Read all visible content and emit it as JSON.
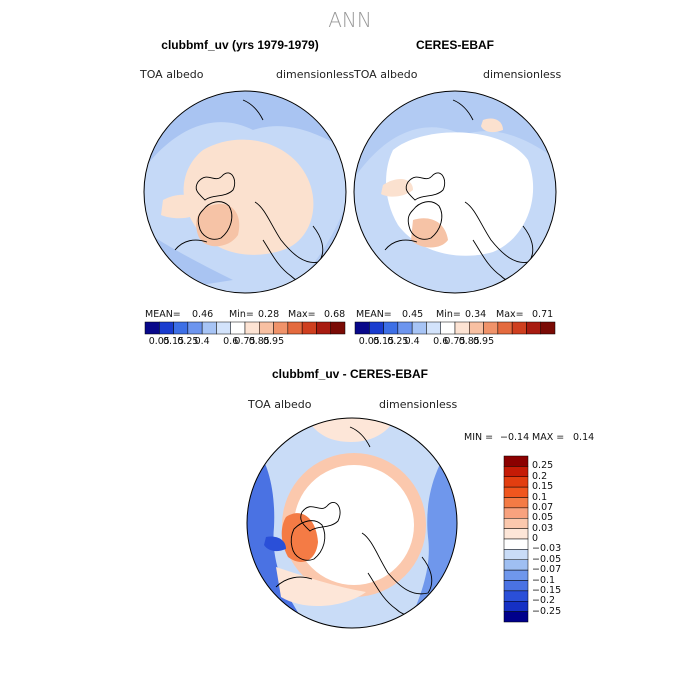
{
  "page": {
    "suptitle": "ANN"
  },
  "chart_data": [
    {
      "type": "heatmap",
      "projection": "north-polar-stereographic",
      "title": "clubbmf_uv (yrs 1979-1979)",
      "left_label": "TOA albedo",
      "right_label": "dimensionless",
      "stats": {
        "mean_label": "MEAN=",
        "mean": "0.46",
        "min_label": "Min=",
        "min": "0.28",
        "max_label": "Max=",
        "max": "0.68"
      },
      "colorbar_levels": [
        "0.05",
        "0.15",
        "0.25",
        "0.4",
        "0.6",
        "0.75",
        "0.85",
        "0.95"
      ],
      "colorbar_colors": [
        "#08088a",
        "#1a3ccf",
        "#3d6fe6",
        "#6d95ee",
        "#a7c4f5",
        "#d3e3fb",
        "#ffffff",
        "#fde3d3",
        "#f8c0a2",
        "#f0936a",
        "#e46a3e",
        "#cf3f1f",
        "#a81b10",
        "#7a0a05"
      ]
    },
    {
      "type": "heatmap",
      "projection": "north-polar-stereographic",
      "title": "CERES-EBAF",
      "left_label": "TOA albedo",
      "right_label": "dimensionless",
      "stats": {
        "mean_label": "MEAN=",
        "mean": "0.45",
        "min_label": "Min=",
        "min": "0.34",
        "max_label": "Max=",
        "max": "0.71"
      },
      "colorbar_levels": [
        "0.05",
        "0.15",
        "0.25",
        "0.4",
        "0.6",
        "0.75",
        "0.85",
        "0.95"
      ],
      "colorbar_colors": [
        "#08088a",
        "#1a3ccf",
        "#3d6fe6",
        "#6d95ee",
        "#a7c4f5",
        "#d3e3fb",
        "#ffffff",
        "#fde3d3",
        "#f8c0a2",
        "#f0936a",
        "#e46a3e",
        "#cf3f1f",
        "#a81b10",
        "#7a0a05"
      ]
    },
    {
      "type": "heatmap",
      "projection": "north-polar-stereographic",
      "title": "clubbmf_uv - CERES-EBAF",
      "left_label": "TOA albedo",
      "right_label": "dimensionless",
      "stats": {
        "min_label": "MIN =",
        "min": "−0.14",
        "max_label": "MAX =",
        "max": "0.14"
      },
      "colorbar_levels": [
        "0.25",
        "0.2",
        "0.15",
        "0.1",
        "0.07",
        "0.05",
        "0.03",
        "0",
        "−0.03",
        "−0.05",
        "−0.07",
        "−0.1",
        "−0.15",
        "−0.2",
        "−0.25"
      ],
      "colorbar_colors": [
        "#8b0000",
        "#c51b06",
        "#e23e10",
        "#f0561e",
        "#f47b45",
        "#f8a27e",
        "#fbc8ad",
        "#fde6d8",
        "#ffffff",
        "#c9dcf7",
        "#9fbff2",
        "#6f97ec",
        "#4a72e3",
        "#2a4fd8",
        "#1530c4",
        "#00008b"
      ]
    }
  ]
}
